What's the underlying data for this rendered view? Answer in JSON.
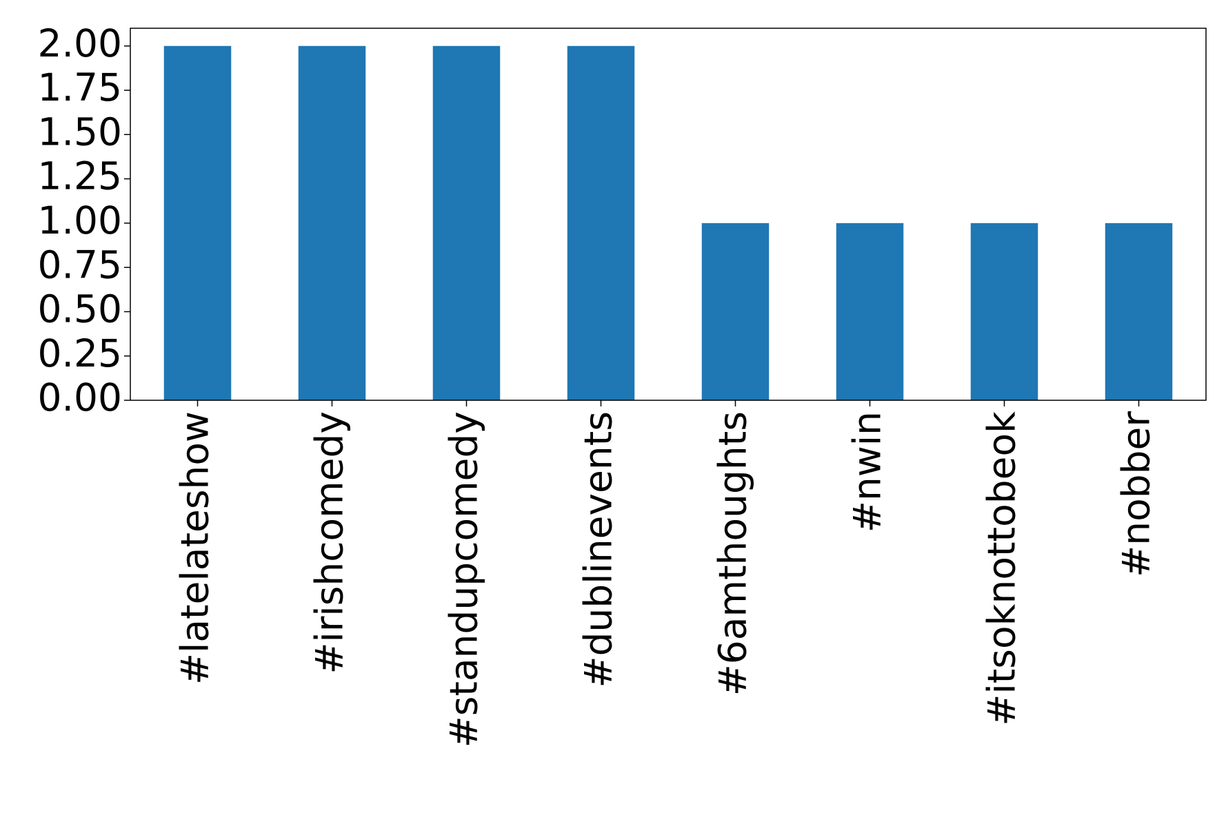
{
  "chart_data": {
    "type": "bar",
    "categories": [
      "#latelateshow",
      "#irishcomedy",
      "#standupcomedy",
      "#dublinevents",
      "#6amthoughts",
      "#nwin",
      "#itsoknottobeok",
      "#nobber"
    ],
    "values": [
      2,
      2,
      2,
      2,
      1,
      1,
      1,
      1
    ],
    "color": "#1f77b4",
    "ylim": [
      0,
      2.1
    ],
    "yticks": [
      {
        "value": 0,
        "label": "0.00"
      },
      {
        "value": 0.25,
        "label": "0.25"
      },
      {
        "value": 0.5,
        "label": "0.50"
      },
      {
        "value": 0.75,
        "label": "0.75"
      },
      {
        "value": 1,
        "label": "1.00"
      },
      {
        "value": 1.25,
        "label": "1.25"
      },
      {
        "value": 1.5,
        "label": "1.50"
      },
      {
        "value": 1.75,
        "label": "1.75"
      },
      {
        "value": 2,
        "label": "2.00"
      }
    ],
    "grid": false
  }
}
